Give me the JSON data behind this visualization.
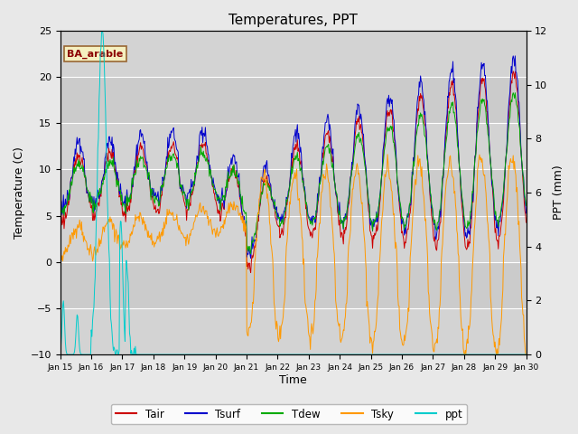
{
  "title": "Temperatures, PPT",
  "xlabel": "Time",
  "ylabel_left": "Temperature (C)",
  "ylabel_right": "PPT (mm)",
  "ylim_left": [
    -10,
    25
  ],
  "ylim_right": [
    0,
    12
  ],
  "xlim": [
    0,
    15
  ],
  "x_tick_labels": [
    "Jan 15",
    "Jan 16",
    "Jan 17",
    "Jan 18",
    "Jan 19",
    "Jan 20",
    "Jan 21",
    "Jan 22",
    "Jan 23",
    "Jan 24",
    "Jan 25",
    "Jan 26",
    "Jan 27",
    "Jan 28",
    "Jan 29",
    "Jan 30"
  ],
  "colors": {
    "Tair": "#cc0000",
    "Tsurf": "#0000cc",
    "Tdew": "#00aa00",
    "Tsky": "#ff9900",
    "ppt": "#00cccc"
  },
  "box_label": "BA_arable",
  "bg_color": "#e8e8e8",
  "plot_bg_light": "#d8d8e8",
  "plot_bg_dark": "#c8c8d8",
  "title_fontsize": 11,
  "label_fontsize": 9,
  "tick_fontsize": 8
}
